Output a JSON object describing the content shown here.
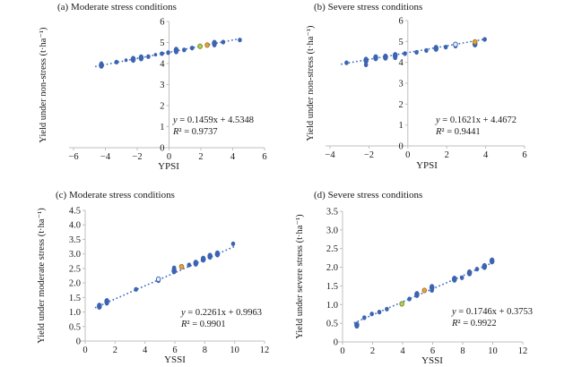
{
  "colors": {
    "point_blue": "#3c64b1",
    "trend_blue": "#4472c4",
    "axis_gray": "#bfbfbf",
    "text_black": "#1a1a1a",
    "green_marker_fill": "#b8cf52",
    "green_marker_stroke": "#6f8f2a",
    "amber_marker_fill": "#e6a33d",
    "amber_marker_stroke": "#a9762a",
    "open_marker_fill": "#e9effa"
  },
  "chart_data": [
    {
      "panel": "a",
      "type": "scatter",
      "title": "(a) Moderate stress conditions",
      "xlabel": "YPSI",
      "ylabel": "Yield under non-stress (t·ha⁻¹)",
      "xlim": [
        -6,
        6
      ],
      "ylim": [
        0,
        6
      ],
      "xtick_vals": [
        -6,
        -4,
        -2,
        0,
        2,
        4,
        6
      ],
      "xtick_labels": [
        "−6",
        "−4",
        "−2",
        "0",
        "2",
        "4",
        "6"
      ],
      "ytick_vals": [
        0,
        1,
        2,
        3,
        4,
        5,
        6
      ],
      "ytick_labels": [
        "0",
        "1",
        "2",
        "3",
        "4",
        "5",
        "6"
      ],
      "grid": false,
      "legend": false,
      "trend": {
        "slope": 0.1459,
        "intercept": 4.5348,
        "x_start": -4.6,
        "x_end": 4.6
      },
      "equation": "y = 0.1459x + 4.5348",
      "r_squared": "R² = 0.9737",
      "points": [
        [
          -4.25,
          3.92,
          "l",
          "b"
        ],
        [
          -4.25,
          4.02,
          "s",
          "b"
        ],
        [
          -3.3,
          4.07,
          "m",
          "b"
        ],
        [
          -2.7,
          4.16,
          "s",
          "b"
        ],
        [
          -2.25,
          4.2,
          "l",
          "b"
        ],
        [
          -1.75,
          4.27,
          "l",
          "b"
        ],
        [
          -1.3,
          4.33,
          "m",
          "b"
        ],
        [
          -0.85,
          4.42,
          "s",
          "b"
        ],
        [
          -0.45,
          4.47,
          "m",
          "b"
        ],
        [
          -0.05,
          4.52,
          "m",
          "b"
        ],
        [
          0.45,
          4.55,
          "m",
          "b"
        ],
        [
          0.45,
          4.63,
          "l",
          "b"
        ],
        [
          0.95,
          4.65,
          "m",
          "b"
        ],
        [
          1.45,
          4.74,
          "m",
          "b"
        ],
        [
          1.95,
          4.82,
          "m",
          "g"
        ],
        [
          2.4,
          4.88,
          "m",
          "a"
        ],
        [
          2.85,
          4.88,
          "m",
          "b"
        ],
        [
          2.85,
          4.96,
          "l",
          "b"
        ],
        [
          3.4,
          5.02,
          "m",
          "b"
        ],
        [
          4.45,
          5.12,
          "m",
          "b"
        ]
      ]
    },
    {
      "panel": "b",
      "type": "scatter",
      "title": "(b) Severe stress conditions",
      "xlabel": "YPSI",
      "ylabel": "Yield under non-stress (t·ha⁻¹)",
      "xlim": [
        -4,
        6
      ],
      "ylim": [
        0,
        6
      ],
      "xtick_vals": [
        -4,
        -2,
        0,
        2,
        4,
        6
      ],
      "xtick_labels": [
        "−4",
        "−2",
        "0",
        "2",
        "4",
        "6"
      ],
      "ytick_vals": [
        0,
        1,
        2,
        3,
        4,
        5,
        6
      ],
      "ytick_labels": [
        "0",
        "1",
        "2",
        "3",
        "4",
        "5",
        "6"
      ],
      "grid": false,
      "legend": false,
      "trend": {
        "slope": 0.1621,
        "intercept": 4.4672,
        "x_start": -3.4,
        "x_end": 4.1
      },
      "equation": "y = 0.1621x + 4.4672",
      "r_squared": "R² = 0.9441",
      "points": [
        [
          -3.15,
          3.98,
          "m",
          "b"
        ],
        [
          -2.15,
          3.88,
          "m",
          "b"
        ],
        [
          -2.15,
          4.1,
          "l",
          "b"
        ],
        [
          -1.65,
          4.22,
          "l",
          "b"
        ],
        [
          -1.15,
          4.25,
          "l",
          "b"
        ],
        [
          -0.65,
          4.22,
          "m",
          "b"
        ],
        [
          -0.65,
          4.33,
          "l",
          "b"
        ],
        [
          -0.15,
          4.42,
          "m",
          "b"
        ],
        [
          0.45,
          4.48,
          "m",
          "b"
        ],
        [
          0.95,
          4.57,
          "m",
          "b"
        ],
        [
          1.45,
          4.67,
          "l",
          "b"
        ],
        [
          1.95,
          4.73,
          "m",
          "b"
        ],
        [
          2.45,
          4.78,
          "m",
          "b"
        ],
        [
          2.45,
          4.86,
          "m",
          "o"
        ],
        [
          3.45,
          4.88,
          "l",
          "b"
        ],
        [
          3.45,
          4.98,
          "m",
          "a"
        ],
        [
          3.95,
          5.1,
          "m",
          "b"
        ]
      ]
    },
    {
      "panel": "c",
      "type": "scatter",
      "title": "(c) Moderate stress conditions",
      "xlabel": "YSSI",
      "ylabel": "Yield under moderate stress (t·ha⁻¹)",
      "xlim": [
        0,
        12
      ],
      "ylim": [
        0,
        4.5
      ],
      "xtick_vals": [
        0,
        2,
        4,
        6,
        8,
        10,
        12
      ],
      "xtick_labels": [
        "0",
        "2",
        "4",
        "6",
        "8",
        "10",
        "12"
      ],
      "ytick_vals": [
        0,
        0.5,
        1,
        1.5,
        2,
        2.5,
        3,
        3.5,
        4,
        4.5
      ],
      "ytick_labels": [
        "0",
        "0.5",
        "1.0",
        "1.5",
        "2.0",
        "2.5",
        "3.0",
        "3.5",
        "4.0",
        "4.5"
      ],
      "grid": false,
      "legend": false,
      "trend": {
        "slope": 0.2261,
        "intercept": 0.9963,
        "x_start": 0.7,
        "x_end": 10.1
      },
      "equation": "y = 0.2261x + 0.9963",
      "r_squared": "R² = 0.9901",
      "points": [
        [
          0.95,
          1.2,
          "l",
          "b"
        ],
        [
          1.45,
          1.3,
          "m",
          "b"
        ],
        [
          1.45,
          1.36,
          "l",
          "b"
        ],
        [
          3.4,
          1.78,
          "m",
          "b"
        ],
        [
          4.9,
          2.08,
          "m",
          "b"
        ],
        [
          4.9,
          2.13,
          "m",
          "o"
        ],
        [
          5.95,
          2.42,
          "l",
          "b"
        ],
        [
          5.95,
          2.52,
          "m",
          "b"
        ],
        [
          6.45,
          2.56,
          "m",
          "a"
        ],
        [
          6.95,
          2.62,
          "m",
          "b"
        ],
        [
          7.4,
          2.68,
          "l",
          "b"
        ],
        [
          7.9,
          2.82,
          "l",
          "b"
        ],
        [
          8.35,
          2.92,
          "l",
          "b"
        ],
        [
          8.85,
          3.0,
          "l",
          "b"
        ],
        [
          9.9,
          3.35,
          "m",
          "b"
        ]
      ]
    },
    {
      "panel": "d",
      "type": "scatter",
      "title": "(d) Severe stress conditions",
      "xlabel": "YSSI",
      "ylabel": "Yield under severe stress (t·ha⁻¹)",
      "xlim": [
        0,
        12
      ],
      "ylim": [
        0,
        3.5
      ],
      "xtick_vals": [
        0,
        2,
        4,
        6,
        8,
        10,
        12
      ],
      "xtick_labels": [
        "0",
        "2",
        "4",
        "6",
        "8",
        "10",
        "12"
      ],
      "ytick_vals": [
        0,
        0.5,
        1,
        1.5,
        2,
        2.5,
        3,
        3.5
      ],
      "ytick_labels": [
        "0",
        "0.5",
        "1.0",
        "1.5",
        "2.0",
        "2.5",
        "3.0",
        "3.5"
      ],
      "grid": false,
      "legend": false,
      "trend": {
        "slope": 0.1746,
        "intercept": 0.3753,
        "x_start": 0.8,
        "x_end": 10.2
      },
      "equation": "y = 0.1746x + 0.3753",
      "r_squared": "R² = 0.9922",
      "points": [
        [
          0.95,
          0.45,
          "l",
          "b"
        ],
        [
          1.45,
          0.65,
          "m",
          "b"
        ],
        [
          1.95,
          0.75,
          "m",
          "b"
        ],
        [
          2.45,
          0.8,
          "m",
          "b"
        ],
        [
          2.95,
          0.88,
          "m",
          "b"
        ],
        [
          3.95,
          1.02,
          "m",
          "g"
        ],
        [
          4.45,
          1.15,
          "m",
          "b"
        ],
        [
          4.95,
          1.27,
          "l",
          "b"
        ],
        [
          5.45,
          1.38,
          "m",
          "a"
        ],
        [
          5.95,
          1.38,
          "m",
          "b"
        ],
        [
          5.95,
          1.46,
          "l",
          "b"
        ],
        [
          7.45,
          1.68,
          "l",
          "b"
        ],
        [
          7.95,
          1.72,
          "m",
          "b"
        ],
        [
          8.45,
          1.85,
          "l",
          "b"
        ],
        [
          8.95,
          1.95,
          "m",
          "b"
        ],
        [
          9.45,
          2.02,
          "l",
          "b"
        ],
        [
          9.95,
          2.17,
          "l",
          "b"
        ]
      ]
    }
  ]
}
